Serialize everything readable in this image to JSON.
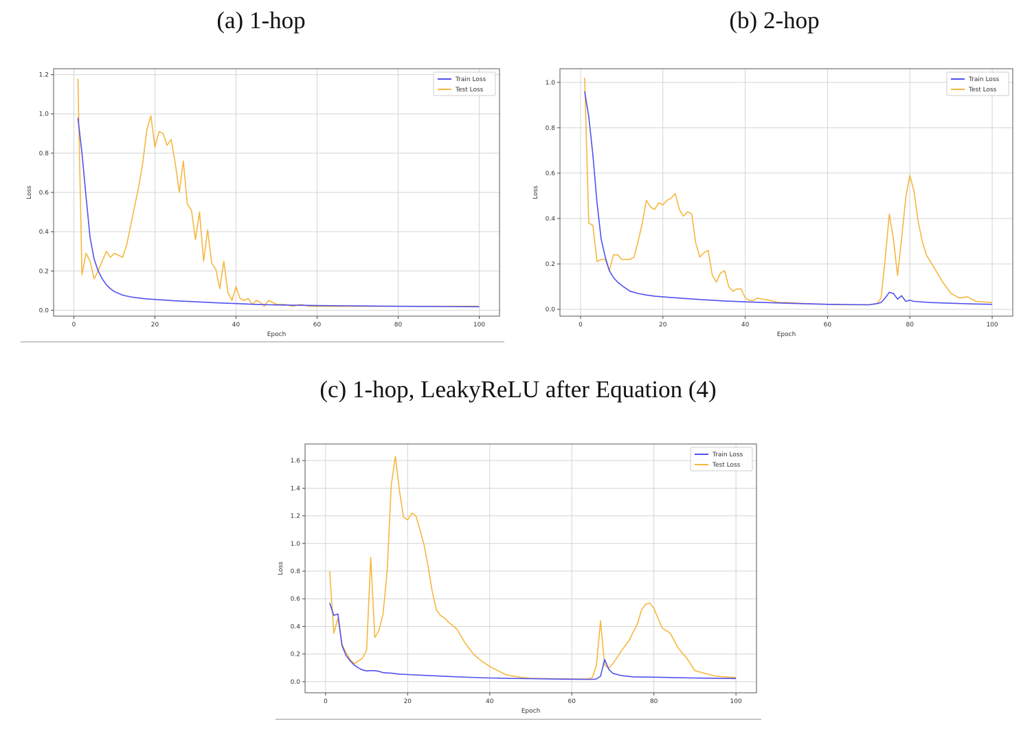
{
  "figures": [
    {
      "caption": "(a) 1-hop"
    },
    {
      "caption": "(b) 2-hop"
    },
    {
      "caption": "(c) 1-hop, LeakyReLU after Equation (4)"
    }
  ],
  "chart_data": [
    {
      "type": "line",
      "xlabel": "Epoch",
      "ylabel": "Loss",
      "xlim": [
        -5,
        105
      ],
      "ylim": [
        -0.03,
        1.23
      ],
      "xticks": [
        "0",
        "20",
        "40",
        "60",
        "80",
        "100"
      ],
      "xtick_values": [
        0,
        20,
        40,
        60,
        80,
        100
      ],
      "yticks": [
        "0.0",
        "0.2",
        "0.4",
        "0.6",
        "0.8",
        "1.0",
        "1.2"
      ],
      "ytick_values": [
        0,
        0.2,
        0.4,
        0.6,
        0.8,
        1.0,
        1.2
      ],
      "grid": true,
      "legend": "top-right",
      "colors": {
        "Train Loss": "#5050f0",
        "Test Loss": "#f5b73e"
      },
      "series": [
        {
          "name": "Train Loss",
          "x": [
            1,
            2,
            3,
            4,
            5,
            6,
            7,
            8,
            9,
            10,
            12,
            14,
            16,
            18,
            20,
            25,
            30,
            35,
            40,
            45,
            50,
            60,
            70,
            80,
            90,
            100
          ],
          "values": [
            0.98,
            0.8,
            0.58,
            0.37,
            0.26,
            0.2,
            0.16,
            0.13,
            0.11,
            0.095,
            0.077,
            0.068,
            0.062,
            0.058,
            0.055,
            0.048,
            0.043,
            0.038,
            0.034,
            0.03,
            0.027,
            0.024,
            0.022,
            0.02,
            0.019,
            0.018
          ]
        },
        {
          "name": "Test Loss",
          "x": [
            1,
            2,
            3,
            4,
            5,
            6,
            7,
            8,
            9,
            10,
            11,
            12,
            13,
            14,
            15,
            16,
            17,
            18,
            19,
            20,
            21,
            22,
            23,
            24,
            25,
            26,
            27,
            28,
            29,
            30,
            31,
            32,
            33,
            34,
            35,
            36,
            37,
            38,
            39,
            40,
            41,
            42,
            43,
            44,
            45,
            46,
            47,
            48,
            49,
            50,
            52,
            54,
            56,
            58,
            60,
            65,
            70,
            75,
            80,
            85,
            90,
            95,
            100
          ],
          "values": [
            1.18,
            0.18,
            0.29,
            0.25,
            0.16,
            0.2,
            0.25,
            0.3,
            0.27,
            0.29,
            0.28,
            0.27,
            0.33,
            0.43,
            0.53,
            0.63,
            0.75,
            0.92,
            0.99,
            0.83,
            0.91,
            0.9,
            0.84,
            0.87,
            0.75,
            0.6,
            0.76,
            0.54,
            0.51,
            0.36,
            0.5,
            0.25,
            0.41,
            0.24,
            0.21,
            0.11,
            0.25,
            0.09,
            0.05,
            0.12,
            0.06,
            0.05,
            0.06,
            0.03,
            0.05,
            0.04,
            0.02,
            0.05,
            0.04,
            0.03,
            0.03,
            0.02,
            0.03,
            0.02,
            0.02,
            0.02,
            0.02,
            0.02,
            0.02,
            0.02,
            0.02,
            0.02,
            0.02
          ]
        }
      ]
    },
    {
      "type": "line",
      "xlabel": "Epoch",
      "ylabel": "Loss",
      "xlim": [
        -5,
        105
      ],
      "ylim": [
        -0.03,
        1.06
      ],
      "xticks": [
        "0",
        "20",
        "40",
        "60",
        "80",
        "100"
      ],
      "xtick_values": [
        0,
        20,
        40,
        60,
        80,
        100
      ],
      "yticks": [
        "0.0",
        "0.2",
        "0.4",
        "0.6",
        "0.8",
        "1.0"
      ],
      "ytick_values": [
        0,
        0.2,
        0.4,
        0.6,
        0.8,
        1.0
      ],
      "grid": true,
      "legend": "top-right",
      "colors": {
        "Train Loss": "#5050f0",
        "Test Loss": "#f5b73e"
      },
      "series": [
        {
          "name": "Train Loss",
          "x": [
            1,
            2,
            3,
            4,
            5,
            6,
            7,
            8,
            9,
            10,
            12,
            14,
            16,
            18,
            20,
            25,
            30,
            35,
            40,
            45,
            50,
            60,
            70,
            72,
            73,
            74,
            75,
            76,
            77,
            78,
            79,
            80,
            81,
            85,
            90,
            95,
            100
          ],
          "values": [
            0.96,
            0.85,
            0.68,
            0.47,
            0.31,
            0.23,
            0.17,
            0.14,
            0.12,
            0.105,
            0.08,
            0.07,
            0.063,
            0.058,
            0.055,
            0.048,
            0.042,
            0.037,
            0.033,
            0.03,
            0.027,
            0.022,
            0.02,
            0.025,
            0.03,
            0.05,
            0.075,
            0.07,
            0.045,
            0.06,
            0.035,
            0.04,
            0.035,
            0.03,
            0.027,
            0.024,
            0.022
          ]
        },
        {
          "name": "Test Loss",
          "x": [
            1,
            2,
            3,
            4,
            5,
            6,
            7,
            8,
            9,
            10,
            11,
            12,
            13,
            14,
            15,
            16,
            17,
            18,
            19,
            20,
            21,
            22,
            23,
            24,
            25,
            26,
            27,
            28,
            29,
            30,
            31,
            32,
            33,
            34,
            35,
            36,
            37,
            38,
            39,
            40,
            41,
            42,
            43,
            44,
            46,
            48,
            50,
            55,
            60,
            65,
            70,
            72,
            73,
            74,
            75,
            76,
            77,
            78,
            79,
            80,
            81,
            82,
            83,
            84,
            86,
            88,
            90,
            92,
            94,
            96,
            100
          ],
          "values": [
            1.02,
            0.38,
            0.37,
            0.21,
            0.22,
            0.22,
            0.17,
            0.24,
            0.24,
            0.22,
            0.22,
            0.22,
            0.23,
            0.3,
            0.38,
            0.48,
            0.45,
            0.44,
            0.47,
            0.46,
            0.48,
            0.49,
            0.51,
            0.44,
            0.41,
            0.43,
            0.42,
            0.29,
            0.23,
            0.25,
            0.26,
            0.15,
            0.12,
            0.16,
            0.17,
            0.1,
            0.08,
            0.09,
            0.09,
            0.05,
            0.04,
            0.04,
            0.05,
            0.045,
            0.04,
            0.03,
            0.03,
            0.025,
            0.022,
            0.02,
            0.02,
            0.025,
            0.05,
            0.22,
            0.42,
            0.31,
            0.15,
            0.31,
            0.49,
            0.59,
            0.52,
            0.39,
            0.3,
            0.24,
            0.18,
            0.12,
            0.07,
            0.05,
            0.055,
            0.035,
            0.03
          ]
        }
      ]
    },
    {
      "type": "line",
      "xlabel": "Epoch",
      "ylabel": "Loss",
      "xlim": [
        -5,
        105
      ],
      "ylim": [
        -0.08,
        1.72
      ],
      "xticks": [
        "0",
        "20",
        "40",
        "60",
        "80",
        "100"
      ],
      "xtick_values": [
        0,
        20,
        40,
        60,
        80,
        100
      ],
      "yticks": [
        "0.0",
        "0.2",
        "0.4",
        "0.6",
        "0.8",
        "1.0",
        "1.2",
        "1.4",
        "1.6"
      ],
      "ytick_values": [
        0,
        0.2,
        0.4,
        0.6,
        0.8,
        1.0,
        1.2,
        1.4,
        1.6
      ],
      "grid": true,
      "legend": "top-right",
      "colors": {
        "Train Loss": "#5050f0",
        "Test Loss": "#f5b73e"
      },
      "series": [
        {
          "name": "Train Loss",
          "x": [
            1,
            2,
            3,
            4,
            5,
            6,
            7,
            8,
            9,
            10,
            11,
            12,
            13,
            14,
            16,
            18,
            20,
            25,
            30,
            35,
            40,
            45,
            50,
            55,
            60,
            65,
            66,
            67,
            68,
            69,
            70,
            72,
            75,
            80,
            85,
            90,
            95,
            100
          ],
          "values": [
            0.57,
            0.48,
            0.49,
            0.26,
            0.19,
            0.15,
            0.12,
            0.1,
            0.085,
            0.078,
            0.08,
            0.08,
            0.075,
            0.065,
            0.062,
            0.055,
            0.052,
            0.045,
            0.038,
            0.032,
            0.027,
            0.024,
            0.022,
            0.02,
            0.018,
            0.017,
            0.02,
            0.04,
            0.16,
            0.09,
            0.06,
            0.045,
            0.035,
            0.033,
            0.03,
            0.027,
            0.025,
            0.023
          ]
        },
        {
          "name": "Test Loss",
          "x": [
            1,
            2,
            3,
            4,
            5,
            6,
            7,
            8,
            9,
            10,
            11,
            12,
            13,
            14,
            15,
            16,
            17,
            18,
            19,
            20,
            21,
            22,
            23,
            24,
            25,
            26,
            27,
            28,
            29,
            30,
            32,
            34,
            36,
            38,
            40,
            42,
            44,
            46,
            48,
            50,
            55,
            60,
            64,
            65,
            66,
            67,
            68,
            69,
            70,
            72,
            74,
            76,
            77,
            78,
            79,
            80,
            82,
            84,
            86,
            88,
            90,
            95,
            100
          ],
          "values": [
            0.8,
            0.35,
            0.46,
            0.27,
            0.21,
            0.16,
            0.13,
            0.15,
            0.17,
            0.23,
            0.9,
            0.32,
            0.37,
            0.49,
            0.8,
            1.42,
            1.63,
            1.38,
            1.19,
            1.17,
            1.22,
            1.2,
            1.1,
            0.99,
            0.83,
            0.65,
            0.52,
            0.48,
            0.46,
            0.43,
            0.38,
            0.28,
            0.2,
            0.15,
            0.11,
            0.08,
            0.05,
            0.04,
            0.03,
            0.025,
            0.022,
            0.02,
            0.02,
            0.03,
            0.12,
            0.44,
            0.12,
            0.1,
            0.13,
            0.22,
            0.3,
            0.42,
            0.52,
            0.56,
            0.57,
            0.53,
            0.39,
            0.35,
            0.24,
            0.17,
            0.08,
            0.04,
            0.03
          ]
        }
      ]
    }
  ]
}
